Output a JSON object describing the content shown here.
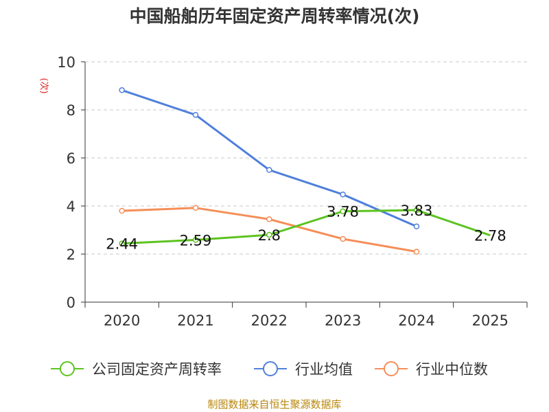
{
  "chart_data": {
    "type": "line",
    "title": "中国船舶历年固定资产周转率情况(次)",
    "ylabel": "(次)",
    "xlabel": "",
    "categories": [
      "2020",
      "2021",
      "2022",
      "2023",
      "2024",
      "2025"
    ],
    "ylim": [
      0,
      10
    ],
    "yticks": [
      0,
      2,
      4,
      6,
      8,
      10
    ],
    "grid": "horizontal dashed",
    "legend_position": "bottom",
    "series": [
      {
        "name": "公司固定资产周转率",
        "color": "#5cc31f",
        "values": [
          2.44,
          2.59,
          2.8,
          3.78,
          3.83,
          2.78
        ],
        "labels": [
          "2.44",
          "2.59",
          "2.8",
          "3.78",
          "3.83",
          "2.78"
        ],
        "show_labels": true
      },
      {
        "name": "行业均值",
        "color": "#4f7fdc",
        "values": [
          8.82,
          7.79,
          5.5,
          4.48,
          3.15,
          null
        ],
        "show_labels": false
      },
      {
        "name": "行业中位数",
        "color": "#f58e57",
        "values": [
          3.8,
          3.92,
          3.45,
          2.63,
          2.1,
          null
        ],
        "show_labels": false
      }
    ]
  },
  "footer": {
    "source": "制图数据来自恒生聚源数据库"
  }
}
